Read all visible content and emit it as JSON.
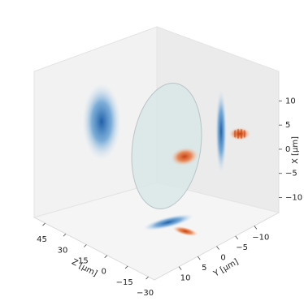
{
  "chart_data": {
    "type": "scatter3d",
    "xlabel": "Z [μm]",
    "ylabel": "Y [μm]",
    "zlabel": "X [μm]",
    "xlim": [
      53,
      -34.4
    ],
    "xticks": [
      45,
      30,
      15,
      0,
      {
        "value": -15,
        "label": "−15"
      },
      {
        "value": -30,
        "label": "−30"
      }
    ],
    "ylim": [
      16.5,
      -16.5
    ],
    "yticks": [
      10,
      5,
      0,
      {
        "value": -5,
        "label": "−5"
      },
      {
        "value": -10,
        "label": "−10"
      }
    ],
    "zlim": [
      -13.1,
      16.1
    ],
    "zticks": [
      10,
      5,
      0,
      {
        "value": -5,
        "label": "−5"
      },
      {
        "value": -10,
        "label": "−10"
      }
    ]
  }
}
